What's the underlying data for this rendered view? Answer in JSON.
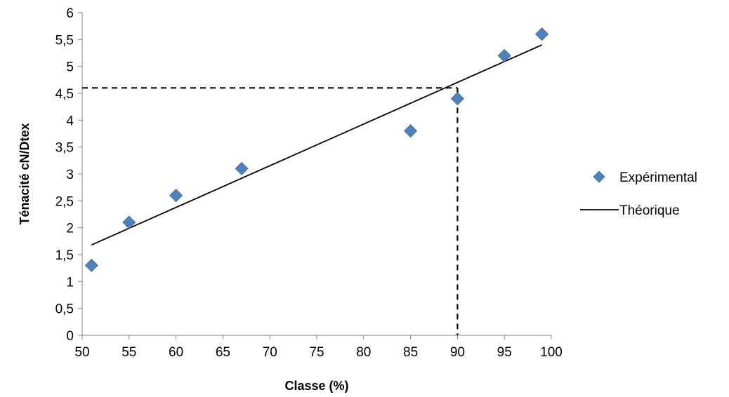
{
  "chart_data": {
    "type": "scatter",
    "xlabel": "Classe (%)",
    "ylabel": "Ténacité cN/Dtex",
    "xlim": [
      50,
      100
    ],
    "ylim": [
      0,
      6
    ],
    "x_ticks": [
      "50",
      "55",
      "60",
      "65",
      "70",
      "75",
      "80",
      "85",
      "90",
      "95",
      "100"
    ],
    "y_ticks": [
      "0",
      "0,5",
      "1",
      "1,5",
      "2",
      "2,5",
      "3",
      "3,5",
      "4",
      "4,5",
      "5",
      "5,5",
      "6"
    ],
    "grid": false,
    "legend_position": "right",
    "series": [
      {
        "name": "Expérimental",
        "kind": "markers",
        "marker": "diamond",
        "color": "#4F81BD",
        "points": [
          [
            51,
            1.3
          ],
          [
            55,
            2.1
          ],
          [
            60,
            2.6
          ],
          [
            67,
            3.1
          ],
          [
            85,
            3.8
          ],
          [
            90,
            4.4
          ],
          [
            95,
            5.2
          ],
          [
            99,
            5.6
          ]
        ]
      },
      {
        "name": "Théorique",
        "kind": "line",
        "color": "#000000",
        "points": [
          [
            51,
            1.68
          ],
          [
            99,
            5.4
          ]
        ]
      }
    ],
    "reference_lines": [
      {
        "style": "dashed",
        "color": "#000000",
        "points": [
          [
            50,
            4.6
          ],
          [
            90,
            4.6
          ]
        ]
      },
      {
        "style": "dashed",
        "color": "#000000",
        "points": [
          [
            90,
            4.6
          ],
          [
            90,
            0
          ]
        ]
      }
    ]
  }
}
